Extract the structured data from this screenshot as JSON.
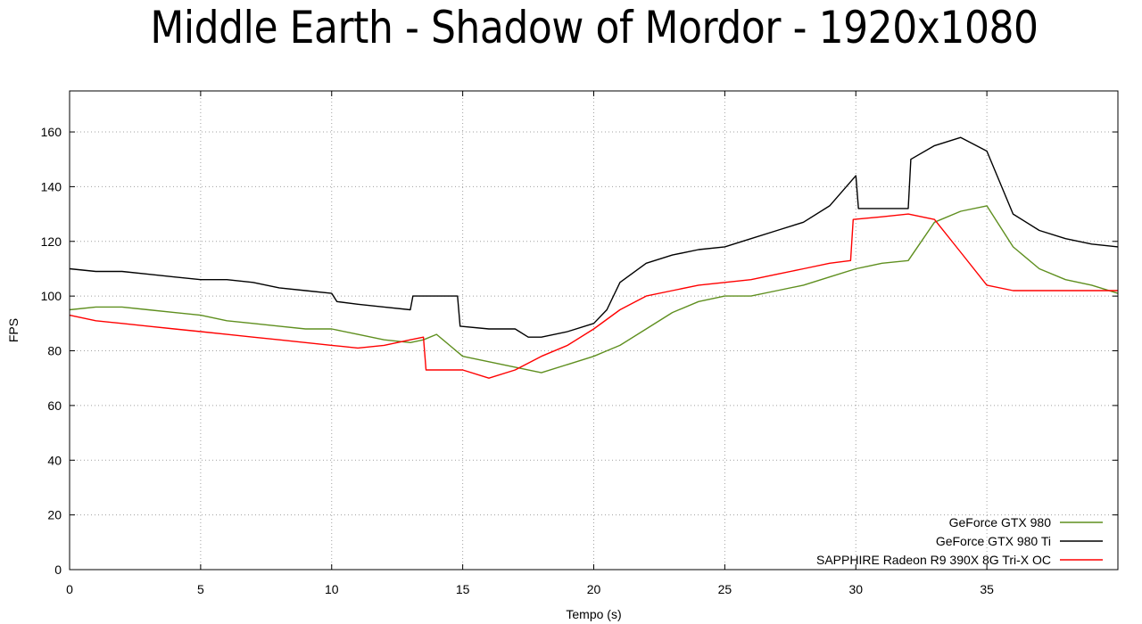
{
  "chart_data": {
    "type": "line",
    "title": "Middle Earth - Shadow of Mordor - 1920x1080",
    "xlabel": "Tempo (s)",
    "ylabel": "FPS",
    "xlim": [
      0,
      40
    ],
    "ylim": [
      0,
      175
    ],
    "xticks": [
      0,
      5,
      10,
      15,
      20,
      25,
      30,
      35
    ],
    "yticks": [
      0,
      20,
      40,
      60,
      80,
      100,
      120,
      140,
      160
    ],
    "grid": true,
    "legend_position": "bottom-right",
    "series": [
      {
        "name": "GeForce GTX 980",
        "color": "#5f8f1f",
        "x": [
          0,
          1,
          2,
          3,
          4,
          5,
          6,
          7,
          8,
          9,
          10,
          11,
          12,
          13,
          13.5,
          14,
          15,
          16,
          17,
          18,
          19,
          20,
          20.5,
          21,
          22,
          23,
          24,
          25,
          26,
          27,
          28,
          29,
          30,
          30.5,
          31,
          32,
          32.5,
          33,
          34,
          35,
          36,
          37,
          38,
          39,
          40
        ],
        "y": [
          95,
          96,
          96,
          95,
          94,
          93,
          91,
          90,
          89,
          88,
          88,
          86,
          84,
          83,
          84,
          86,
          78,
          76,
          74,
          72,
          75,
          78,
          80,
          82,
          88,
          94,
          98,
          100,
          100,
          102,
          104,
          107,
          110,
          111,
          112,
          113,
          120,
          127,
          131,
          133,
          118,
          110,
          106,
          104,
          101
        ]
      },
      {
        "name": "GeForce GTX 980 Ti",
        "color": "#000000",
        "x": [
          0,
          1,
          2,
          3,
          4,
          5,
          6,
          7,
          8,
          9,
          10,
          10.2,
          11,
          12,
          13,
          13.1,
          14,
          14.8,
          14.9,
          16,
          17,
          17.5,
          18,
          19,
          20,
          20.5,
          21,
          22,
          23,
          24,
          25,
          26,
          27,
          28,
          29,
          30,
          30.1,
          31,
          32,
          32.1,
          33,
          34,
          35,
          36,
          37,
          38,
          39,
          40
        ],
        "y": [
          110,
          109,
          109,
          108,
          107,
          106,
          106,
          105,
          103,
          102,
          101,
          98,
          97,
          96,
          95,
          100,
          100,
          100,
          89,
          88,
          88,
          85,
          85,
          87,
          90,
          95,
          105,
          112,
          115,
          117,
          118,
          121,
          124,
          127,
          133,
          144,
          132,
          132,
          132,
          150,
          155,
          158,
          153,
          130,
          124,
          121,
          119,
          118
        ]
      },
      {
        "name": "SAPPHIRE Radeon R9 390X 8G Tri-X OC",
        "color": "#ff0000",
        "x": [
          0,
          1,
          2,
          3,
          4,
          5,
          6,
          7,
          8,
          9,
          10,
          11,
          12,
          13,
          13.5,
          13.6,
          15,
          16,
          17,
          18,
          19,
          20,
          21,
          22,
          23,
          24,
          25,
          26,
          27,
          28,
          29,
          29.8,
          29.9,
          31,
          32,
          33,
          34,
          35,
          36,
          37,
          38,
          39,
          40
        ],
        "y": [
          93,
          91,
          90,
          89,
          88,
          87,
          86,
          85,
          84,
          83,
          82,
          81,
          82,
          84,
          85,
          73,
          73,
          70,
          73,
          78,
          82,
          88,
          95,
          100,
          102,
          104,
          105,
          106,
          108,
          110,
          112,
          113,
          128,
          129,
          130,
          128,
          116,
          104,
          102,
          102,
          102,
          102,
          102
        ]
      }
    ]
  }
}
